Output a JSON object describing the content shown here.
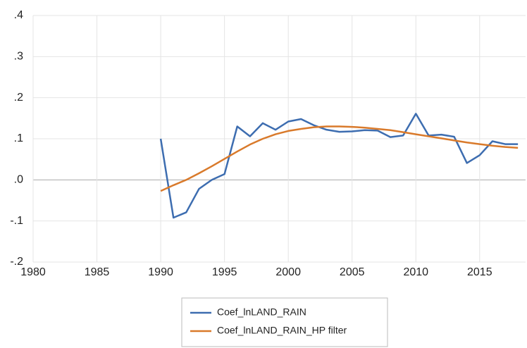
{
  "chart_data": {
    "type": "line",
    "x": [
      1990,
      1991,
      1992,
      1993,
      1994,
      1995,
      1996,
      1997,
      1998,
      1999,
      2000,
      2001,
      2002,
      2003,
      2004,
      2005,
      2006,
      2007,
      2008,
      2009,
      2010,
      2011,
      2012,
      2013,
      2014,
      2015,
      2016,
      2017,
      2018
    ],
    "series": [
      {
        "name": "Coef_lnLAND_RAIN",
        "color": "#3d6db0",
        "values": [
          0.1,
          -0.092,
          -0.079,
          -0.022,
          0.0,
          0.014,
          0.13,
          0.106,
          0.138,
          0.122,
          0.142,
          0.148,
          0.133,
          0.122,
          0.117,
          0.118,
          0.121,
          0.12,
          0.104,
          0.108,
          0.161,
          0.108,
          0.11,
          0.105,
          0.041,
          0.06,
          0.094,
          0.087,
          0.087
        ]
      },
      {
        "name": "Coef_lnLAND_RAIN_HP filter",
        "color": "#d97a2b",
        "values": [
          -0.027,
          -0.013,
          0.0,
          0.016,
          0.033,
          0.051,
          0.069,
          0.086,
          0.1,
          0.111,
          0.119,
          0.124,
          0.128,
          0.13,
          0.13,
          0.129,
          0.127,
          0.124,
          0.121,
          0.116,
          0.111,
          0.106,
          0.101,
          0.096,
          0.091,
          0.087,
          0.083,
          0.08,
          0.078
        ]
      }
    ],
    "xlim": [
      1980,
      2018.6
    ],
    "xticks": [
      1980,
      1985,
      1990,
      1995,
      2000,
      2005,
      2010,
      2015
    ],
    "ylim": [
      -0.2,
      0.4
    ],
    "yticks": [
      {
        "value": -0.2,
        "label": "-.2"
      },
      {
        "value": -0.1,
        "label": "-.1"
      },
      {
        "value": 0,
        "label": ".0"
      },
      {
        "value": 0.1,
        "label": ".1"
      },
      {
        "value": 0.2,
        "label": ".2"
      },
      {
        "value": 0.3,
        "label": ".3"
      },
      {
        "value": 0.4,
        "label": ".4"
      }
    ],
    "grid": true
  }
}
